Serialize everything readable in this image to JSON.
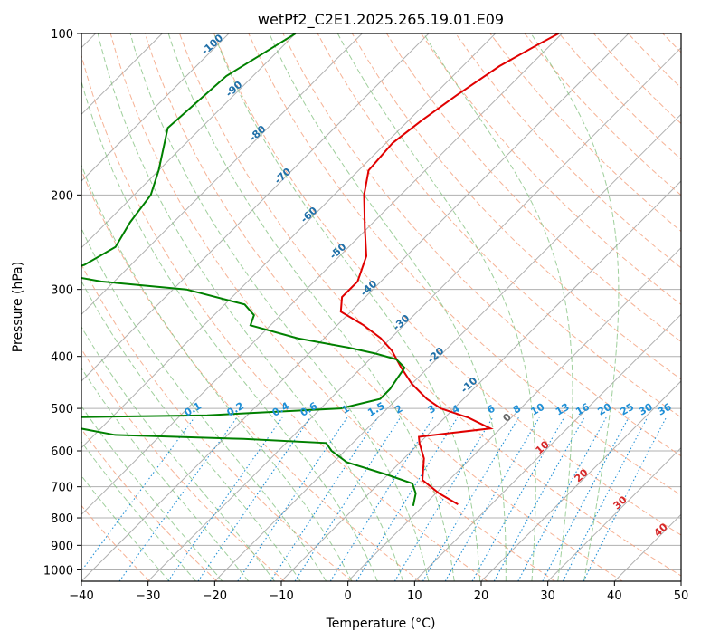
{
  "chart_data": {
    "type": "line",
    "diagram": "skew-t log-p",
    "title": "wetPf2_C2E1.2025.265.19.01.E09",
    "xlabel": "Temperature (°C)",
    "ylabel": "Pressure (hPa)",
    "xlim": [
      -40,
      50
    ],
    "ylim": [
      1050,
      100
    ],
    "y_scale": "log",
    "grid": true,
    "x_ticks": [
      -40,
      -30,
      -20,
      -10,
      0,
      10,
      20,
      30,
      40,
      50
    ],
    "y_ticks": [
      1000,
      900,
      800,
      700,
      600,
      500,
      400,
      300,
      200,
      100
    ],
    "series": [
      {
        "color": "#e00000",
        "values": [
          {
            "p": 100,
            "t": -50.5
          },
          {
            "p": 105,
            "t": -52
          },
          {
            "p": 115,
            "t": -54.5
          },
          {
            "p": 130,
            "t": -56.5
          },
          {
            "p": 145,
            "t": -58
          },
          {
            "p": 160,
            "t": -59
          },
          {
            "p": 180,
            "t": -58.5
          },
          {
            "p": 200,
            "t": -55.5
          },
          {
            "p": 230,
            "t": -50.5
          },
          {
            "p": 260,
            "t": -46
          },
          {
            "p": 290,
            "t": -43.5
          },
          {
            "p": 310,
            "t": -43.5
          },
          {
            "p": 330,
            "t": -41.5
          },
          {
            "p": 350,
            "t": -36
          },
          {
            "p": 370,
            "t": -31.5
          },
          {
            "p": 390,
            "t": -28
          },
          {
            "p": 420,
            "t": -24
          },
          {
            "p": 450,
            "t": -20
          },
          {
            "p": 480,
            "t": -15.5
          },
          {
            "p": 500,
            "t": -12
          },
          {
            "p": 520,
            "t": -6.5
          },
          {
            "p": 545,
            "t": -1.5
          },
          {
            "p": 555,
            "t": -6.5
          },
          {
            "p": 565,
            "t": -11
          },
          {
            "p": 580,
            "t": -10
          },
          {
            "p": 620,
            "t": -7
          },
          {
            "p": 680,
            "t": -4
          },
          {
            "p": 720,
            "t": 0.5
          },
          {
            "p": 755,
            "t": 5
          }
        ]
      },
      {
        "color": "#008000",
        "values": [
          {
            "p": 100,
            "t": -90
          },
          {
            "p": 120,
            "t": -94
          },
          {
            "p": 150,
            "t": -95
          },
          {
            "p": 180,
            "t": -90
          },
          {
            "p": 200,
            "t": -87.5
          },
          {
            "p": 225,
            "t": -86.5
          },
          {
            "p": 250,
            "t": -85
          },
          {
            "p": 270,
            "t": -87
          },
          {
            "p": 280,
            "t": -90
          },
          {
            "p": 290,
            "t": -82
          },
          {
            "p": 300,
            "t": -68
          },
          {
            "p": 320,
            "t": -57
          },
          {
            "p": 335,
            "t": -54
          },
          {
            "p": 350,
            "t": -53
          },
          {
            "p": 370,
            "t": -44
          },
          {
            "p": 385,
            "t": -35
          },
          {
            "p": 395,
            "t": -30
          },
          {
            "p": 405,
            "t": -26
          },
          {
            "p": 420,
            "t": -23.5
          },
          {
            "p": 440,
            "t": -23
          },
          {
            "p": 460,
            "t": -22.5
          },
          {
            "p": 480,
            "t": -22.5
          },
          {
            "p": 500,
            "t": -27
          },
          {
            "p": 515,
            "t": -46
          },
          {
            "p": 520,
            "t": -69
          },
          {
            "p": 530,
            "t": -69
          },
          {
            "p": 545,
            "t": -63
          },
          {
            "p": 560,
            "t": -57
          },
          {
            "p": 570,
            "t": -37
          },
          {
            "p": 580,
            "t": -24
          },
          {
            "p": 600,
            "t": -22
          },
          {
            "p": 630,
            "t": -18
          },
          {
            "p": 665,
            "t": -10
          },
          {
            "p": 690,
            "t": -5
          },
          {
            "p": 720,
            "t": -3
          },
          {
            "p": 760,
            "t": -1.5
          }
        ]
      }
    ],
    "dry_adiabat_labels": [
      "-100",
      "-90",
      "-80",
      "-70",
      "-60",
      "-50",
      "-40",
      "-30",
      "-20",
      "-10",
      "0",
      "10",
      "20",
      "30",
      "40"
    ],
    "mixing_ratio_labels": [
      "0.1",
      "0.2",
      "0.4",
      "0.6",
      "1",
      "1.5",
      "2",
      "3",
      "4",
      "6",
      "8",
      "10",
      "13",
      "16",
      "20",
      "25",
      "30",
      "36"
    ],
    "colors": {
      "temperature": "#e00000",
      "dewpoint": "#008000",
      "grid": "#b0b0b0",
      "dry_adiabat": "#f4a582",
      "moist_adiabat": "#7fbf7b",
      "mixing_ratio": "#1f8fd6",
      "adiabat_label_cold": "#1f6fa8",
      "adiabat_label_warm": "#d62728"
    }
  }
}
